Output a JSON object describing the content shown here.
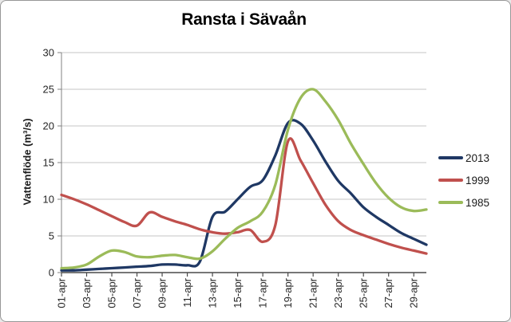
{
  "frame": {
    "background_color": "#ffffff",
    "border_color": "#979797"
  },
  "chart_data": {
    "type": "line",
    "title": "Ransta i Sävaån",
    "xlabel": "",
    "ylabel": "Vattenflöde (m³/s)",
    "ylim": [
      0,
      30
    ],
    "y_ticks": [
      0,
      5,
      10,
      15,
      20,
      25,
      30
    ],
    "x_tick_step": 2,
    "grid": true,
    "smooth_lines": true,
    "legend_position": "right",
    "gridline_color": "#c6c6c6",
    "axis_line_color": "#808080",
    "bottom_axis_color": "#4a4a4a",
    "categories": [
      "01-apr",
      "02-apr",
      "03-apr",
      "04-apr",
      "05-apr",
      "06-apr",
      "07-apr",
      "08-apr",
      "09-apr",
      "10-apr",
      "11-apr",
      "12-apr",
      "13-apr",
      "14-apr",
      "15-apr",
      "16-apr",
      "17-apr",
      "18-apr",
      "19-apr",
      "20-apr",
      "21-apr",
      "22-apr",
      "23-apr",
      "24-apr",
      "25-apr",
      "26-apr",
      "27-apr",
      "28-apr",
      "29-apr",
      "30-apr"
    ],
    "series": [
      {
        "name": "2013",
        "color": "#1F3864",
        "values": [
          0.3,
          0.3,
          0.4,
          0.5,
          0.6,
          0.7,
          0.8,
          0.9,
          1.1,
          1.1,
          1.0,
          1.5,
          7.6,
          8.3,
          10.0,
          11.7,
          12.6,
          16.0,
          20.4,
          20.3,
          18.0,
          15.1,
          12.5,
          10.8,
          8.9,
          7.6,
          6.5,
          5.4,
          4.6,
          3.8
        ]
      },
      {
        "name": "1999",
        "color": "#C0504D",
        "values": [
          10.6,
          10.0,
          9.3,
          8.5,
          7.7,
          6.9,
          6.4,
          8.2,
          7.6,
          7.0,
          6.5,
          5.9,
          5.5,
          5.3,
          5.5,
          5.8,
          4.2,
          6.5,
          17.9,
          15.3,
          12.2,
          9.2,
          7.0,
          5.8,
          5.1,
          4.5,
          3.9,
          3.4,
          3.0,
          2.6
        ]
      },
      {
        "name": "1985",
        "color": "#9BBB59",
        "values": [
          0.6,
          0.7,
          1.1,
          2.2,
          3.0,
          2.8,
          2.2,
          2.1,
          2.3,
          2.4,
          2.1,
          1.9,
          2.9,
          4.6,
          6.1,
          7.0,
          8.3,
          12.0,
          19.5,
          23.8,
          25.0,
          23.3,
          20.8,
          17.6,
          14.8,
          12.2,
          10.2,
          8.9,
          8.4,
          8.6
        ]
      }
    ]
  }
}
